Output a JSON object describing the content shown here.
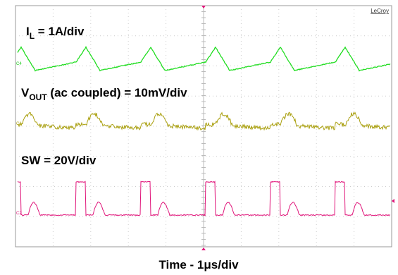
{
  "brand": "LeCroy",
  "traces": [
    {
      "channel": "C4",
      "label": {
        "main": "I",
        "sub": "L",
        "rest": " = 1A/div"
      }
    },
    {
      "channel": "C1",
      "label": {
        "main": "V",
        "sub": "OUT",
        "rest": " (ac coupled) = 10mV/div"
      }
    },
    {
      "channel": "C2",
      "label": {
        "main": "SW = 20V/div"
      }
    }
  ],
  "time_scale": "Time - 1μs/div"
}
